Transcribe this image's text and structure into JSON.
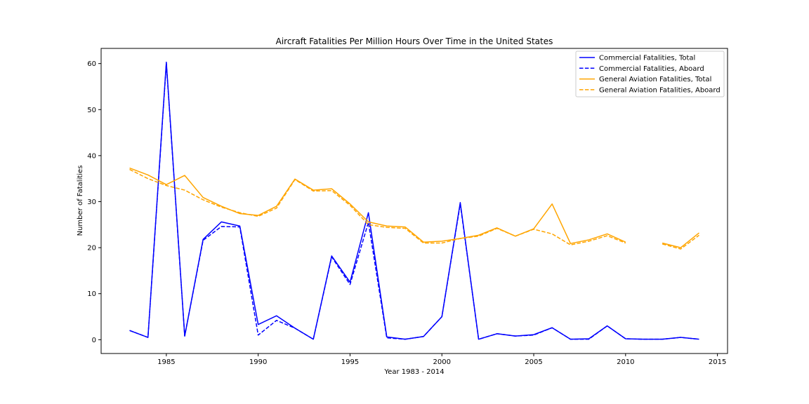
{
  "chart_data": {
    "type": "line",
    "title": "Aircraft Fatalities Per Million Hours Over Time in the United States",
    "xlabel": "Year 1983 - 2014",
    "ylabel": "Number of Fatalities",
    "xlim": [
      1981.45,
      2015.55
    ],
    "ylim": [
      -3.0,
      63.3
    ],
    "xticks": [
      1985,
      1990,
      1995,
      2000,
      2005,
      2010,
      2015
    ],
    "yticks": [
      0,
      10,
      20,
      30,
      40,
      50,
      60
    ],
    "grid": false,
    "legend_position": "top-right",
    "x": [
      1983,
      1984,
      1985,
      1986,
      1987,
      1988,
      1989,
      1990,
      1991,
      1992,
      1993,
      1994,
      1995,
      1996,
      1997,
      1998,
      1999,
      2000,
      2001,
      2002,
      2003,
      2004,
      2005,
      2006,
      2007,
      2008,
      2009,
      2010,
      2011,
      2012,
      2013,
      2014
    ],
    "series": [
      {
        "name": "Commercial Fatalities, Total",
        "color": "#0000ff",
        "dash": "solid",
        "values": [
          2.0,
          0.5,
          60.3,
          0.8,
          21.8,
          25.6,
          24.7,
          3.3,
          5.2,
          2.5,
          0.1,
          18.2,
          12.5,
          27.6,
          0.6,
          0.1,
          0.7,
          5.0,
          29.8,
          0.1,
          1.3,
          0.8,
          1.1,
          2.6,
          0.1,
          0.2,
          3.0,
          0.2,
          0.1,
          0.1,
          0.5,
          0.1
        ]
      },
      {
        "name": "Commercial Fatalities, Aboard",
        "color": "#0000ff",
        "dash": "dashed",
        "values": [
          2.0,
          0.5,
          60.0,
          0.8,
          21.6,
          24.6,
          24.5,
          1.0,
          4.2,
          2.5,
          0.1,
          18.0,
          12.0,
          25.5,
          0.4,
          0.1,
          0.7,
          5.0,
          29.5,
          0.1,
          1.3,
          0.8,
          1.0,
          2.6,
          0.1,
          0.1,
          3.0,
          0.2,
          0.1,
          0.1,
          0.5,
          0.1
        ]
      },
      {
        "name": "General Aviation Fatalities, Total",
        "color": "#ffa500",
        "dash": "solid",
        "values": [
          37.3,
          35.8,
          33.7,
          35.7,
          30.9,
          29.0,
          27.4,
          27.0,
          29.0,
          34.9,
          32.5,
          32.8,
          29.5,
          25.6,
          24.7,
          24.5,
          21.2,
          21.4,
          22.0,
          22.7,
          24.3,
          22.5,
          24.1,
          29.5,
          20.9,
          21.7,
          23.0,
          21.2,
          null,
          21.0,
          20.0,
          23.2
        ]
      },
      {
        "name": "General Aviation Fatalities, Aboard",
        "color": "#ffa500",
        "dash": "dashed",
        "values": [
          37.0,
          35.0,
          33.5,
          32.5,
          30.4,
          28.8,
          27.6,
          26.8,
          28.6,
          34.8,
          32.3,
          32.4,
          29.2,
          25.0,
          24.4,
          24.2,
          21.0,
          21.0,
          22.0,
          22.5,
          24.2,
          22.5,
          24.0,
          23.0,
          20.6,
          21.4,
          22.6,
          21.0,
          null,
          20.8,
          19.7,
          22.7
        ]
      }
    ]
  }
}
